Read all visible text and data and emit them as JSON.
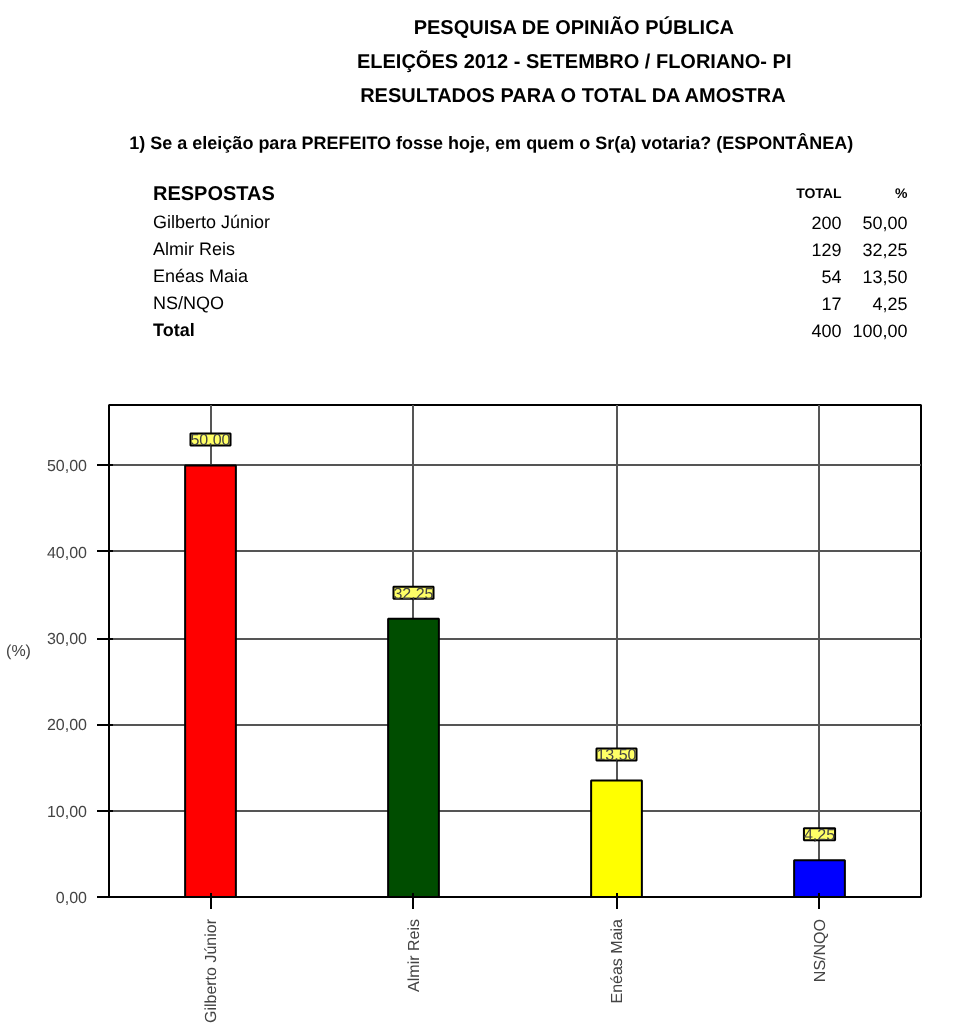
{
  "chart_data": {
    "type": "bar",
    "title": "PESQUISA DE OPINIÃO PÚBLICA",
    "subtitle": "ELEIÇÕES 2012 - SETEMBRO / FLORIANO- PI\nRESULTADOS PARA O TOTAL DA AMOSTRA",
    "annotations": [
      "1) Se a eleição para PREFEITO fosse hoje, em quem o Sr(a) votaria? (ESPONTÂNEA)",
      "RESPOSTAS",
      "TOTAL",
      "%",
      "Gilberto Júnior",
      "200",
      "50,00",
      "Almir Reis",
      "129",
      "32,25",
      "Enéas Maia",
      "54",
      "13,50",
      "NS/NQO",
      "17",
      "4,25",
      "Total",
      "400",
      "100,00"
    ],
    "categories": [
      "Gilberto Júnior",
      "Almir Reis",
      "Enéas Maia",
      "NS/NQO"
    ],
    "values": [
      50,
      32.25,
      13.5,
      4.25
    ],
    "colors": [
      "#ff0000",
      "#004d00",
      "#ffff00",
      "#0000ff"
    ],
    "value_labels": [
      "50,00",
      "32,25",
      "13,50",
      "4,25"
    ],
    "ylabel": "(%)",
    "ylim": [
      0,
      57
    ],
    "yticks": [
      {
        "value": 0,
        "label": "0,00"
      },
      {
        "value": 10,
        "label": "10,00"
      },
      {
        "value": 20,
        "label": "20,00"
      },
      {
        "value": 30,
        "label": "30,00"
      },
      {
        "value": 40,
        "label": "40,00"
      },
      {
        "value": 50,
        "label": "50,00"
      }
    ],
    "grid": true
  }
}
